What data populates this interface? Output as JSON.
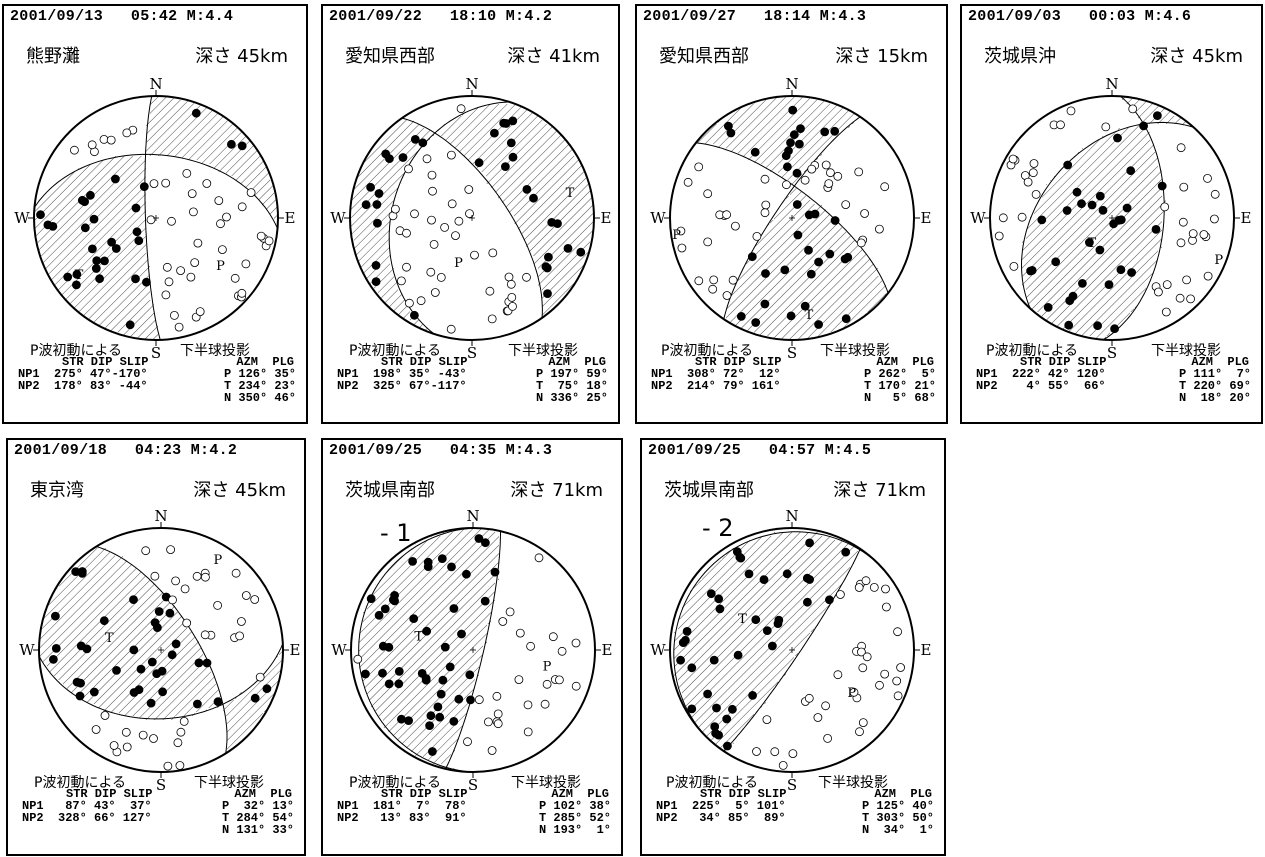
{
  "labels": {
    "n": "N",
    "s": "S",
    "e": "E",
    "w": "W",
    "t": "T",
    "p": "P"
  },
  "method_label": "P波初動による",
  "projection_label": "下半球投影",
  "table_header": "STR DIP SLIP",
  "axis_header": "AZM  PLG",
  "np1_label": "NP1",
  "np2_label": "NP2",
  "panels": [
    {
      "header": "2001/09/13   05:42 M:4.4",
      "location": "熊野灘",
      "depth": "深さ 45km",
      "sub": "",
      "np1": "275° 47°-170°",
      "np2": "178° 83° -44°",
      "p_axis": "P 126° 35°",
      "t_axis": "T 234° 23°",
      "n_axis": "N 350° 46°"
    },
    {
      "header": "2001/09/22   18:10 M:4.2",
      "location": "愛知県西部",
      "depth": "深さ 41km",
      "sub": "",
      "np1": "198° 35° -43°",
      "np2": "325° 67°-117°",
      "p_axis": "P 197° 59°",
      "t_axis": "T  75° 18°",
      "n_axis": "N 336° 25°"
    },
    {
      "header": "2001/09/27   18:14 M:4.3",
      "location": "愛知県西部",
      "depth": "深さ 15km",
      "sub": "",
      "np1": "308° 72°  12°",
      "np2": "214° 79° 161°",
      "p_axis": "P 262°  5°",
      "t_axis": "T 170° 21°",
      "n_axis": "N   5° 68°"
    },
    {
      "header": "2001/09/03   00:03 M:4.6",
      "location": "茨城県沖",
      "depth": "深さ 45km",
      "sub": "",
      "np1": "222° 42° 120°",
      "np2": "  4° 55°  66°",
      "p_axis": "P 111°  7°",
      "t_axis": "T 220° 69°",
      "n_axis": "N  18° 20°"
    },
    {
      "header": "2001/09/18   04:23 M:4.2",
      "location": "東京湾",
      "depth": "深さ 45km",
      "sub": "",
      "np1": " 87° 43°  37°",
      "np2": "328° 66° 127°",
      "p_axis": "P  32° 13°",
      "t_axis": "T 284° 54°",
      "n_axis": "N 131° 33°"
    },
    {
      "header": "2001/09/25   04:35 M:4.3",
      "location": "茨城県南部",
      "depth": "深さ 71km",
      "sub": "- 1",
      "np1": "181°  7°  78°",
      "np2": " 13° 83°  91°",
      "p_axis": "P 102° 38°",
      "t_axis": "T 285° 52°",
      "n_axis": "N 193°  1°"
    },
    {
      "header": "2001/09/25   04:57 M:4.5",
      "location": "茨城県南部",
      "depth": "深さ 71km",
      "sub": "- 2",
      "np1": "225°  5° 101°",
      "np2": " 34° 85°  89°",
      "p_axis": "P 125° 40°",
      "t_axis": "T 303° 50°",
      "n_axis": "N  34°  1°"
    }
  ]
}
